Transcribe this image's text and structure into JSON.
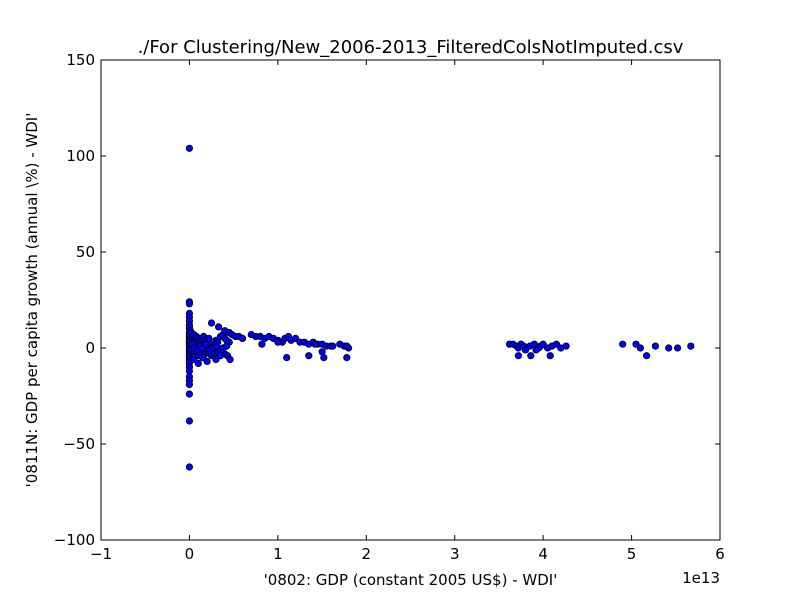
{
  "chart_data": {
    "type": "scatter",
    "title": "./For Clustering/New_2006-2013_FilteredColsNotImputed.csv",
    "xlabel": "'0802: GDP  (constant 2005 US$) - WDI'",
    "ylabel": "'0811N: GDP per capita growth  (annual \\%) - WDI'",
    "x_offset_label": "1e13",
    "xlim": [
      -1,
      6
    ],
    "ylim": [
      -100,
      150
    ],
    "x_unit_scale": 10000000000000.0,
    "xticks": [
      -1,
      0,
      1,
      2,
      3,
      4,
      5,
      6
    ],
    "xtick_labels": [
      "−1",
      "0",
      "1",
      "2",
      "3",
      "4",
      "5",
      "6"
    ],
    "yticks": [
      -100,
      -50,
      0,
      50,
      100,
      150
    ],
    "ytick_labels": [
      "−100",
      "−50",
      "0",
      "50",
      "100",
      "150"
    ],
    "grid": false,
    "marker_color": "#0000ff",
    "marker_edge_color": "#000000",
    "points_x_in_1e13": [
      0.0,
      0.0,
      0.0,
      0.0,
      0.0,
      0.0,
      0.0,
      0.0,
      0.0,
      0.0,
      0.0,
      0.0,
      0.0,
      0.0,
      0.0,
      0.0,
      0.0,
      0.0,
      0.0,
      0.0,
      0.0,
      0.0,
      0.0,
      0.0,
      0.0,
      0.0,
      0.0,
      0.0,
      0.0,
      0.0,
      0.0,
      0.0,
      0.0,
      0.0,
      0.01,
      0.02,
      0.03,
      0.04,
      0.05,
      0.06,
      0.07,
      0.08,
      0.09,
      0.1,
      0.11,
      0.12,
      0.13,
      0.14,
      0.15,
      0.16,
      0.18,
      0.2,
      0.22,
      0.25,
      0.28,
      0.3,
      0.32,
      0.35,
      0.38,
      0.4,
      0.42,
      0.45,
      0.02,
      0.05,
      0.08,
      0.1,
      0.12,
      0.15,
      0.18,
      0.2,
      0.22,
      0.25,
      0.28,
      0.3,
      0.33,
      0.36,
      0.4,
      0.43,
      0.46,
      0.03,
      0.06,
      0.09,
      0.12,
      0.15,
      0.19,
      0.23,
      0.27,
      0.31,
      0.35,
      0.38,
      0.42,
      0.25,
      0.33,
      0.05,
      0.1,
      0.2,
      0.3,
      0.4,
      0.45,
      0.15,
      0.35,
      0.48,
      0.52,
      0.56,
      0.6,
      0.7,
      0.75,
      0.8,
      0.85,
      0.9,
      0.95,
      1.0,
      1.05,
      1.08,
      1.12,
      1.15,
      1.2,
      1.25,
      1.3,
      1.35,
      1.4,
      1.45,
      1.5,
      1.55,
      1.6,
      1.7,
      1.75,
      1.8,
      1.78,
      0.82,
      1.0,
      1.1,
      1.35,
      1.5,
      1.52,
      1.78,
      1.42,
      1.62,
      3.62,
      3.66,
      3.7,
      3.72,
      3.75,
      3.78,
      3.8,
      3.85,
      3.9,
      3.95,
      3.97,
      4.0,
      4.05,
      4.1,
      4.15,
      4.2,
      4.26,
      3.72,
      3.86,
      4.08,
      3.92,
      4.9,
      5.05,
      5.1,
      5.17,
      5.27,
      5.42,
      5.52,
      5.67
    ],
    "points_y": [
      104,
      24,
      23,
      18,
      16,
      14,
      12,
      10,
      8,
      6,
      5,
      4,
      3,
      2,
      1,
      0,
      -1,
      -2,
      -3,
      -4,
      -5,
      -6,
      -8,
      -10,
      -12,
      -15,
      -17,
      -19,
      -24,
      -38,
      -62,
      -7,
      11,
      7,
      9,
      8,
      6,
      5,
      7,
      4,
      3,
      6,
      5,
      2,
      4,
      1,
      3,
      5,
      2,
      6,
      4,
      3,
      5,
      2,
      1,
      4,
      3,
      6,
      7,
      5,
      4,
      3,
      -1,
      -2,
      -3,
      -4,
      -2,
      -5,
      -3,
      -2,
      -1,
      -4,
      -3,
      -5,
      -2,
      -1,
      -3,
      -4,
      -6,
      2,
      0,
      -1,
      1,
      0,
      2,
      -1,
      0,
      1,
      -2,
      0,
      1,
      13,
      11,
      -6,
      -8,
      -7,
      -6,
      9,
      8,
      -5,
      -4,
      7,
      6,
      6,
      5,
      7,
      6,
      6,
      5,
      6,
      5,
      4,
      3,
      5,
      6,
      4,
      5,
      3,
      3,
      2,
      3,
      2,
      2,
      1,
      1,
      2,
      1,
      0,
      -5,
      2,
      3,
      -5,
      -4,
      -2,
      -5,
      1,
      2,
      1,
      2,
      2,
      1,
      0,
      2,
      1,
      -1,
      1,
      2,
      0,
      1,
      2,
      0,
      1,
      2,
      0,
      1,
      -4,
      -4,
      -4,
      -1,
      2,
      2,
      0,
      -4,
      1,
      0,
      0,
      1
    ]
  }
}
